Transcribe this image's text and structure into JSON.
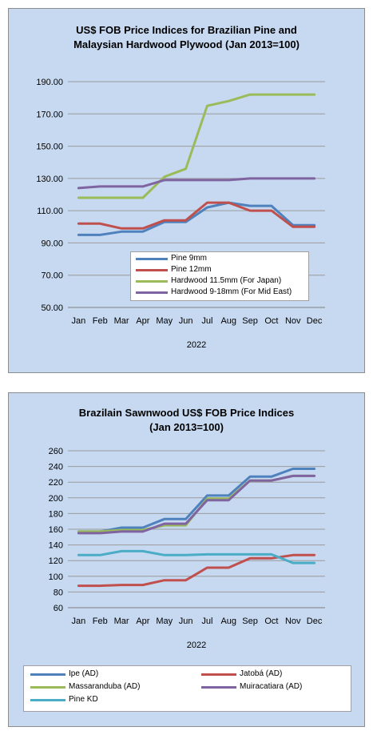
{
  "chart_data": [
    {
      "type": "line",
      "title_lines": [
        "US$ FOB Price Indices for Brazilian  Pine and",
        "Malaysian Hardwood Plywood (Jan 2013=100)"
      ],
      "categories": [
        "Jan",
        "Feb",
        "Mar",
        "Apr",
        "May",
        "Jun",
        "Jul",
        "Aug",
        "Sep",
        "Oct",
        "Nov",
        "Dec"
      ],
      "xlabel": "2022",
      "ylabel": "",
      "ylim": [
        50,
        190
      ],
      "yticks": [
        "190.00",
        "170.00",
        "150.00",
        "130.00",
        "110.00",
        "90.00",
        "70.00",
        "50.00"
      ],
      "ytick_values": [
        190,
        170,
        150,
        130,
        110,
        90,
        70,
        50
      ],
      "grid": true,
      "legend": "inside-bottom-center",
      "series": [
        {
          "name": "Pine 9mm",
          "color": "#4f81bd",
          "values": [
            95,
            95,
            97,
            97,
            103,
            103,
            112,
            115,
            113,
            113,
            101,
            101
          ]
        },
        {
          "name": "Pine 12mm",
          "color": "#c0504d",
          "values": [
            102,
            102,
            99,
            99,
            104,
            104,
            115,
            115,
            110,
            110,
            100,
            100
          ]
        },
        {
          "name": "Hardwood 11.5mm (For Japan)",
          "color": "#9bbb59",
          "values": [
            118,
            118,
            118,
            118,
            131,
            136,
            175,
            178,
            182,
            182,
            182,
            182
          ]
        },
        {
          "name": "Hardwood 9-18mm (For Mid East)",
          "color": "#8064a2",
          "values": [
            124,
            125,
            125,
            125,
            129,
            129,
            129,
            129,
            130,
            130,
            130,
            130
          ]
        }
      ]
    },
    {
      "type": "line",
      "title_lines": [
        "Brazilain Sawnwood US$ FOB Price Indices",
        "(Jan 2013=100)"
      ],
      "categories": [
        "Jan",
        "Feb",
        "Mar",
        "Apr",
        "May",
        "Jun",
        "Jul",
        "Aug",
        "Sep",
        "Oct",
        "Nov",
        "Dec"
      ],
      "xlabel": "2022",
      "ylabel": "",
      "ylim": [
        60,
        260
      ],
      "yticks": [
        "260",
        "240",
        "220",
        "200",
        "180",
        "160",
        "140",
        "120",
        "100",
        "80",
        "60"
      ],
      "ytick_values": [
        260,
        240,
        220,
        200,
        180,
        160,
        140,
        120,
        100,
        80,
        60
      ],
      "grid": true,
      "legend": "bottom",
      "series": [
        {
          "name": "Ipe (AD)",
          "color": "#4f81bd",
          "values": [
            157,
            157,
            162,
            162,
            173,
            173,
            203,
            203,
            227,
            227,
            237,
            237
          ]
        },
        {
          "name": "Jatobá (AD)",
          "color": "#c0504d",
          "values": [
            88,
            88,
            89,
            89,
            95,
            95,
            111,
            111,
            123,
            123,
            127,
            127
          ]
        },
        {
          "name": "Massaranduba (AD)",
          "color": "#9bbb59",
          "values": [
            157,
            157,
            159,
            159,
            165,
            165,
            199,
            199,
            222,
            222,
            228,
            228
          ]
        },
        {
          "name": "Muiracatiara (AD)",
          "color": "#8064a2",
          "values": [
            155,
            155,
            157,
            157,
            167,
            167,
            197,
            197,
            222,
            222,
            228,
            228
          ]
        },
        {
          "name": "Pine KD",
          "color": "#4bacc6",
          "values": [
            127,
            127,
            132,
            132,
            127,
            127,
            128,
            128,
            128,
            128,
            117,
            117
          ]
        }
      ]
    }
  ]
}
